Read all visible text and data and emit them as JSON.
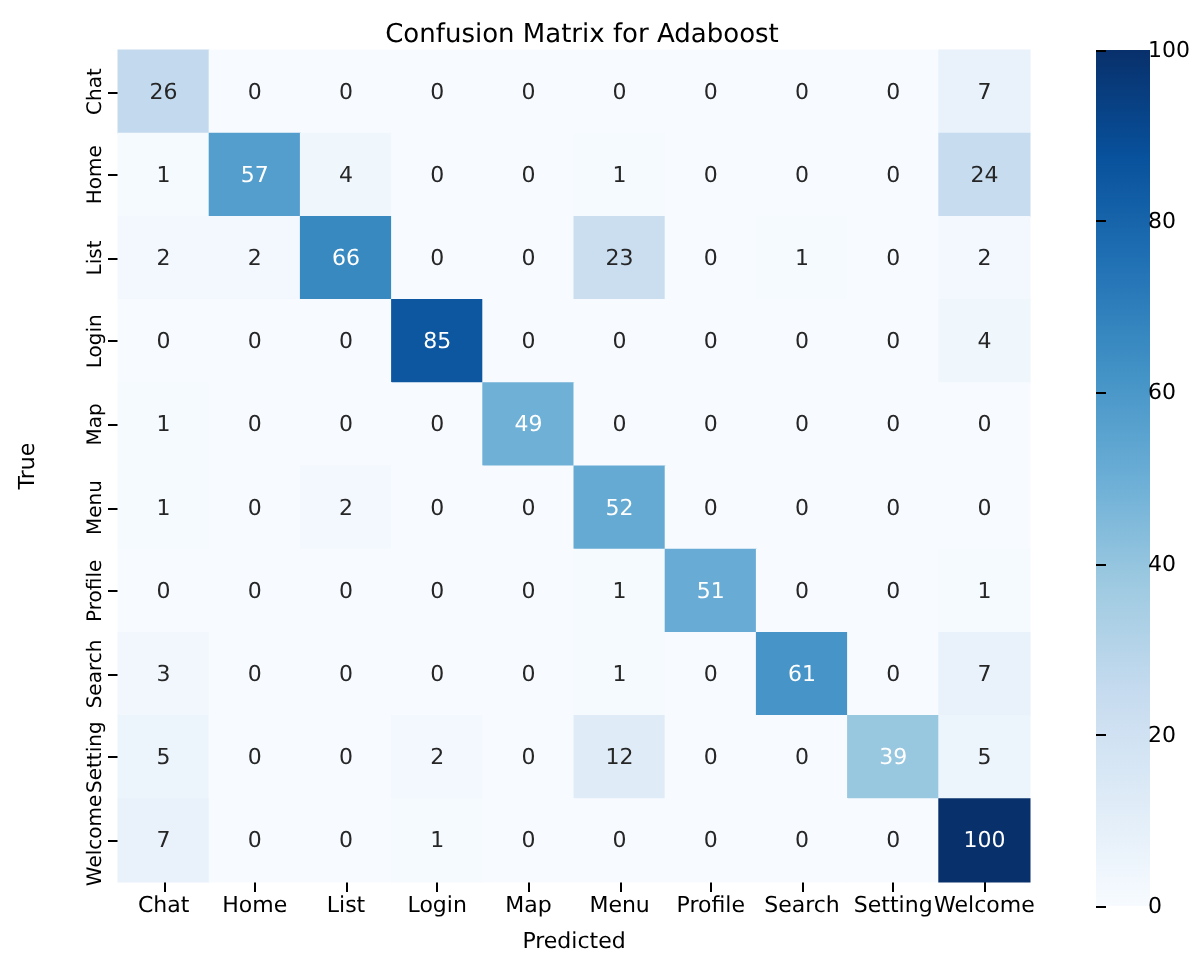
{
  "chart_data": {
    "type": "heatmap",
    "title": "Confusion Matrix for Adaboost",
    "xlabel": "Predicted",
    "ylabel": "True",
    "categories": [
      "Chat",
      "Home",
      "List",
      "Login",
      "Map",
      "Menu",
      "Profile",
      "Search",
      "Setting",
      "Welcome"
    ],
    "y_categories": [
      "Chat",
      "Home",
      "List",
      "Login",
      "Map",
      "Menu",
      "Profile",
      "Search",
      "Setting",
      "Welcome"
    ],
    "cells": [
      [
        26,
        0,
        0,
        0,
        0,
        0,
        0,
        0,
        0,
        7
      ],
      [
        1,
        57,
        4,
        0,
        0,
        1,
        0,
        0,
        0,
        24
      ],
      [
        2,
        2,
        66,
        0,
        0,
        23,
        0,
        1,
        0,
        2
      ],
      [
        0,
        0,
        0,
        85,
        0,
        0,
        0,
        0,
        0,
        4
      ],
      [
        1,
        0,
        0,
        0,
        49,
        0,
        0,
        0,
        0,
        0
      ],
      [
        1,
        0,
        2,
        0,
        0,
        52,
        0,
        0,
        0,
        0
      ],
      [
        0,
        0,
        0,
        0,
        0,
        1,
        51,
        0,
        0,
        1
      ],
      [
        3,
        0,
        0,
        0,
        0,
        1,
        0,
        61,
        0,
        7
      ],
      [
        5,
        0,
        0,
        2,
        0,
        12,
        0,
        0,
        39,
        5
      ],
      [
        7,
        0,
        0,
        1,
        0,
        0,
        0,
        0,
        0,
        100
      ]
    ],
    "clim": [
      0,
      100
    ],
    "cticks": [
      0,
      20,
      40,
      60,
      80,
      100
    ],
    "data_labels": true
  }
}
